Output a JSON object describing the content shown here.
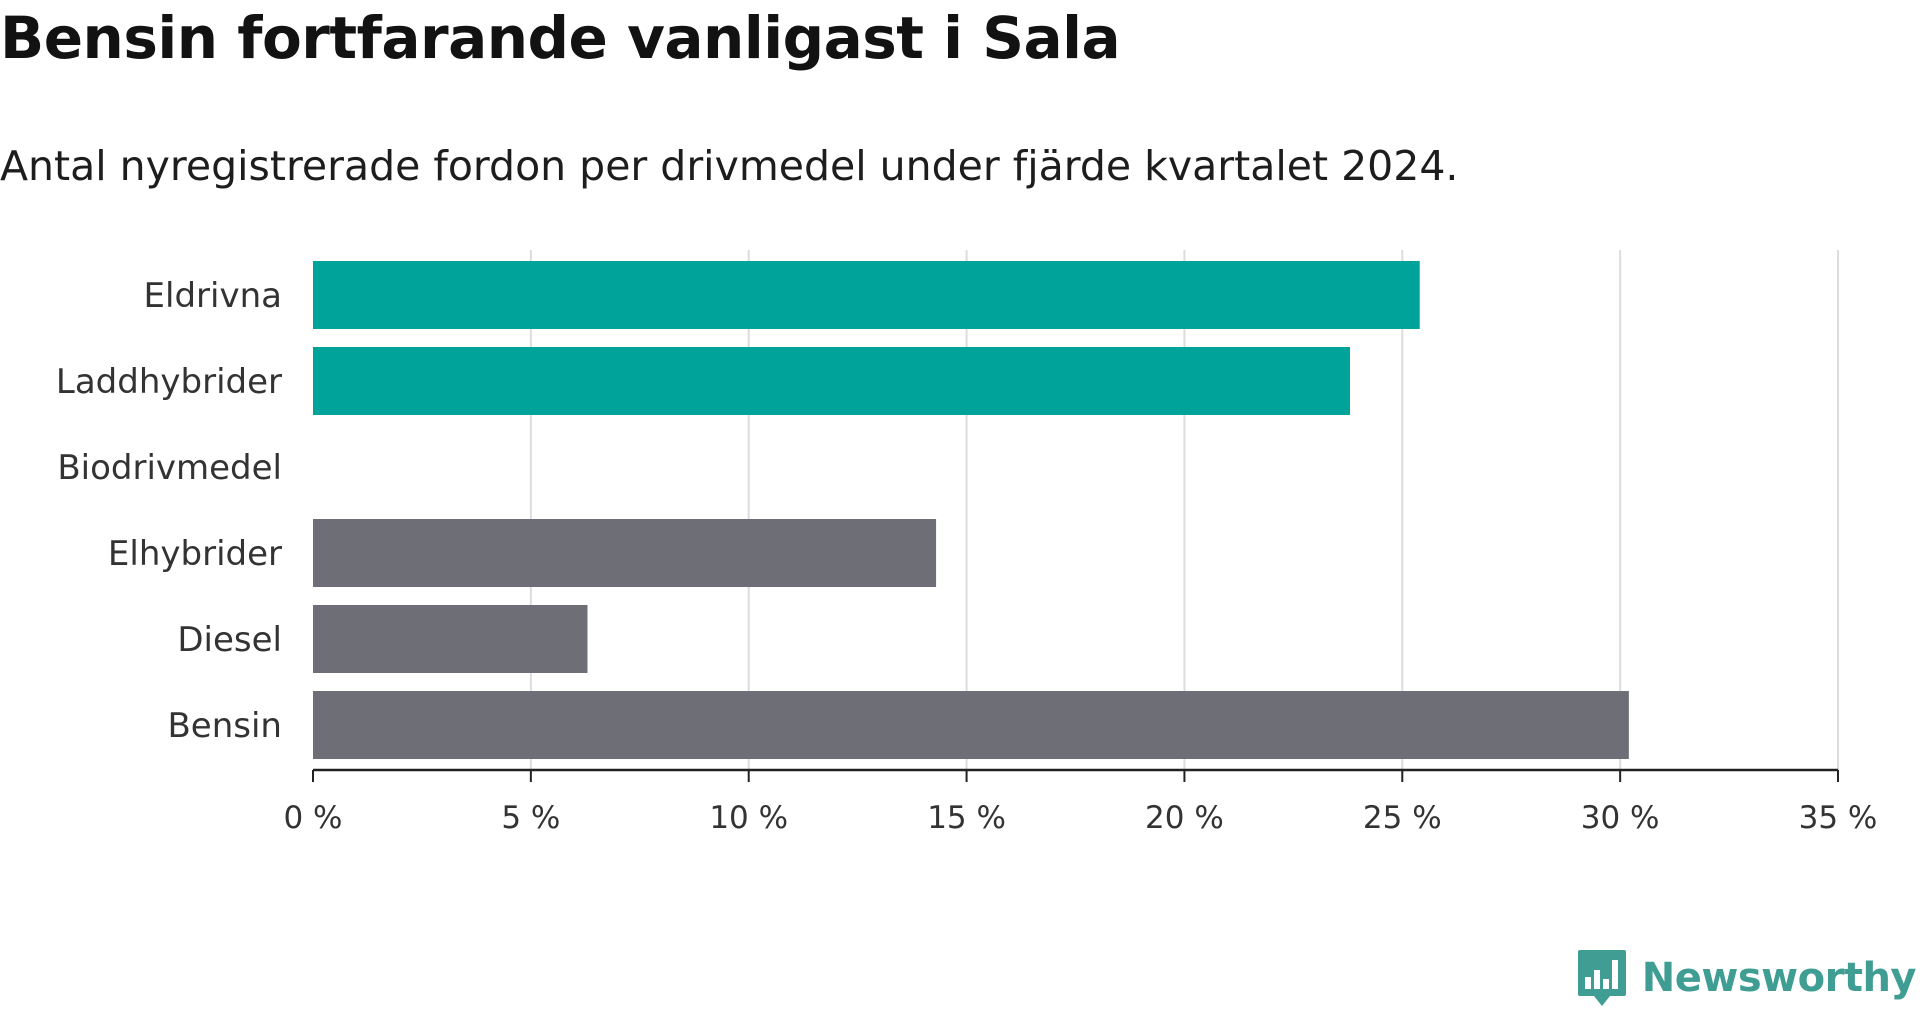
{
  "chart_data": {
    "type": "bar",
    "orientation": "horizontal",
    "title": "Bensin fortfarande vanligast i Sala",
    "subtitle": "Antal nyregistrerade fordon per drivmedel under fjärde kvartalet 2024.",
    "categories": [
      "Eldrivna",
      "Laddhybrider",
      "Biodrivmedel",
      "Elhybrider",
      "Diesel",
      "Bensin"
    ],
    "values": [
      25.4,
      23.8,
      0,
      14.3,
      6.3,
      30.2
    ],
    "colors": [
      "#00a39a",
      "#00a39a",
      "#6e6e77",
      "#6e6e77",
      "#6e6e77",
      "#6e6e77"
    ],
    "xlim": [
      0,
      35
    ],
    "xticks": [
      0,
      5,
      10,
      15,
      20,
      25,
      30,
      35
    ],
    "xtick_labels": [
      "0 %",
      "5 %",
      "10 %",
      "15 %",
      "20 %",
      "25 %",
      "30 %",
      "35 %"
    ],
    "grid": true
  },
  "brand": {
    "name": "Newsworthy",
    "icon": "chart-bubble-icon",
    "color": "#3f9d93"
  }
}
